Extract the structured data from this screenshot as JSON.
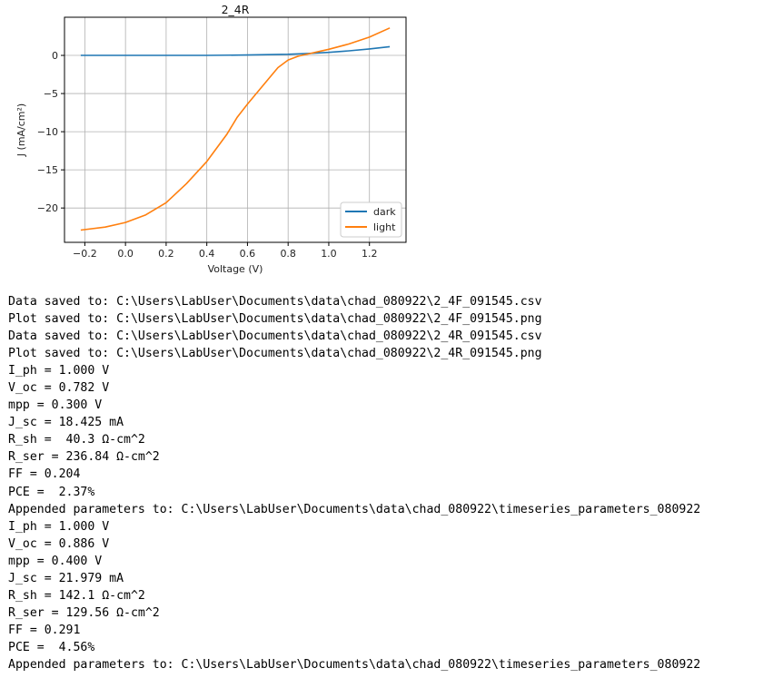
{
  "chart_data": {
    "type": "line",
    "title": "2_4R",
    "xlabel": "Voltage (V)",
    "ylabel": "J (mA/cm²)",
    "xlim": [
      -0.3,
      1.38
    ],
    "ylim": [
      -24.5,
      5
    ],
    "xticks": [
      -0.2,
      0.0,
      0.2,
      0.4,
      0.6,
      0.8,
      1.0,
      1.2
    ],
    "xtick_labels": [
      "−0.2",
      "0.0",
      "0.2",
      "0.4",
      "0.6",
      "0.8",
      "1.0",
      "1.2"
    ],
    "yticks": [
      0,
      -5,
      -10,
      -15,
      -20
    ],
    "ytick_labels": [
      "0",
      "−5",
      "−10",
      "−15",
      "−20"
    ],
    "grid": true,
    "legend_position": "bottom-right",
    "series": [
      {
        "name": "dark",
        "color": "#1f77b4",
        "x": [
          -0.22,
          0.0,
          0.2,
          0.4,
          0.6,
          0.8,
          0.9,
          1.0,
          1.1,
          1.2,
          1.3
        ],
        "y": [
          0.0,
          0.0,
          0.0,
          0.0,
          0.05,
          0.15,
          0.25,
          0.4,
          0.6,
          0.85,
          1.15
        ]
      },
      {
        "name": "light",
        "color": "#ff7f0e",
        "x": [
          -0.22,
          -0.1,
          0.0,
          0.1,
          0.2,
          0.3,
          0.4,
          0.5,
          0.55,
          0.6,
          0.7,
          0.75,
          0.8,
          0.85,
          0.9,
          0.95,
          1.0,
          1.1,
          1.2,
          1.3
        ],
        "y": [
          -22.9,
          -22.5,
          -21.9,
          -20.9,
          -19.3,
          -16.8,
          -13.9,
          -10.3,
          -8.1,
          -6.4,
          -3.2,
          -1.6,
          -0.6,
          -0.1,
          0.2,
          0.5,
          0.8,
          1.5,
          2.4,
          3.6
        ]
      }
    ]
  },
  "console": {
    "lines": [
      "Data saved to: C:\\Users\\LabUser\\Documents\\data\\chad_080922\\2_4F_091545.csv",
      "Plot saved to: C:\\Users\\LabUser\\Documents\\data\\chad_080922\\2_4F_091545.png",
      "Data saved to: C:\\Users\\LabUser\\Documents\\data\\chad_080922\\2_4R_091545.csv",
      "Plot saved to: C:\\Users\\LabUser\\Documents\\data\\chad_080922\\2_4R_091545.png",
      "I_ph = 1.000 V",
      "V_oc = 0.782 V",
      "mpp = 0.300 V",
      "J_sc = 18.425 mA",
      "R_sh =  40.3 Ω-cm^2",
      "R_ser = 236.84 Ω-cm^2",
      "FF = 0.204",
      "PCE =  2.37%",
      "Appended parameters to: C:\\Users\\LabUser\\Documents\\data\\chad_080922\\timeseries_parameters_080922",
      "I_ph = 1.000 V",
      "V_oc = 0.886 V",
      "mpp = 0.400 V",
      "J_sc = 21.979 mA",
      "R_sh = 142.1 Ω-cm^2",
      "R_ser = 129.56 Ω-cm^2",
      "FF = 0.291",
      "PCE =  4.56%",
      "Appended parameters to: C:\\Users\\LabUser\\Documents\\data\\chad_080922\\timeseries_parameters_080922"
    ]
  }
}
